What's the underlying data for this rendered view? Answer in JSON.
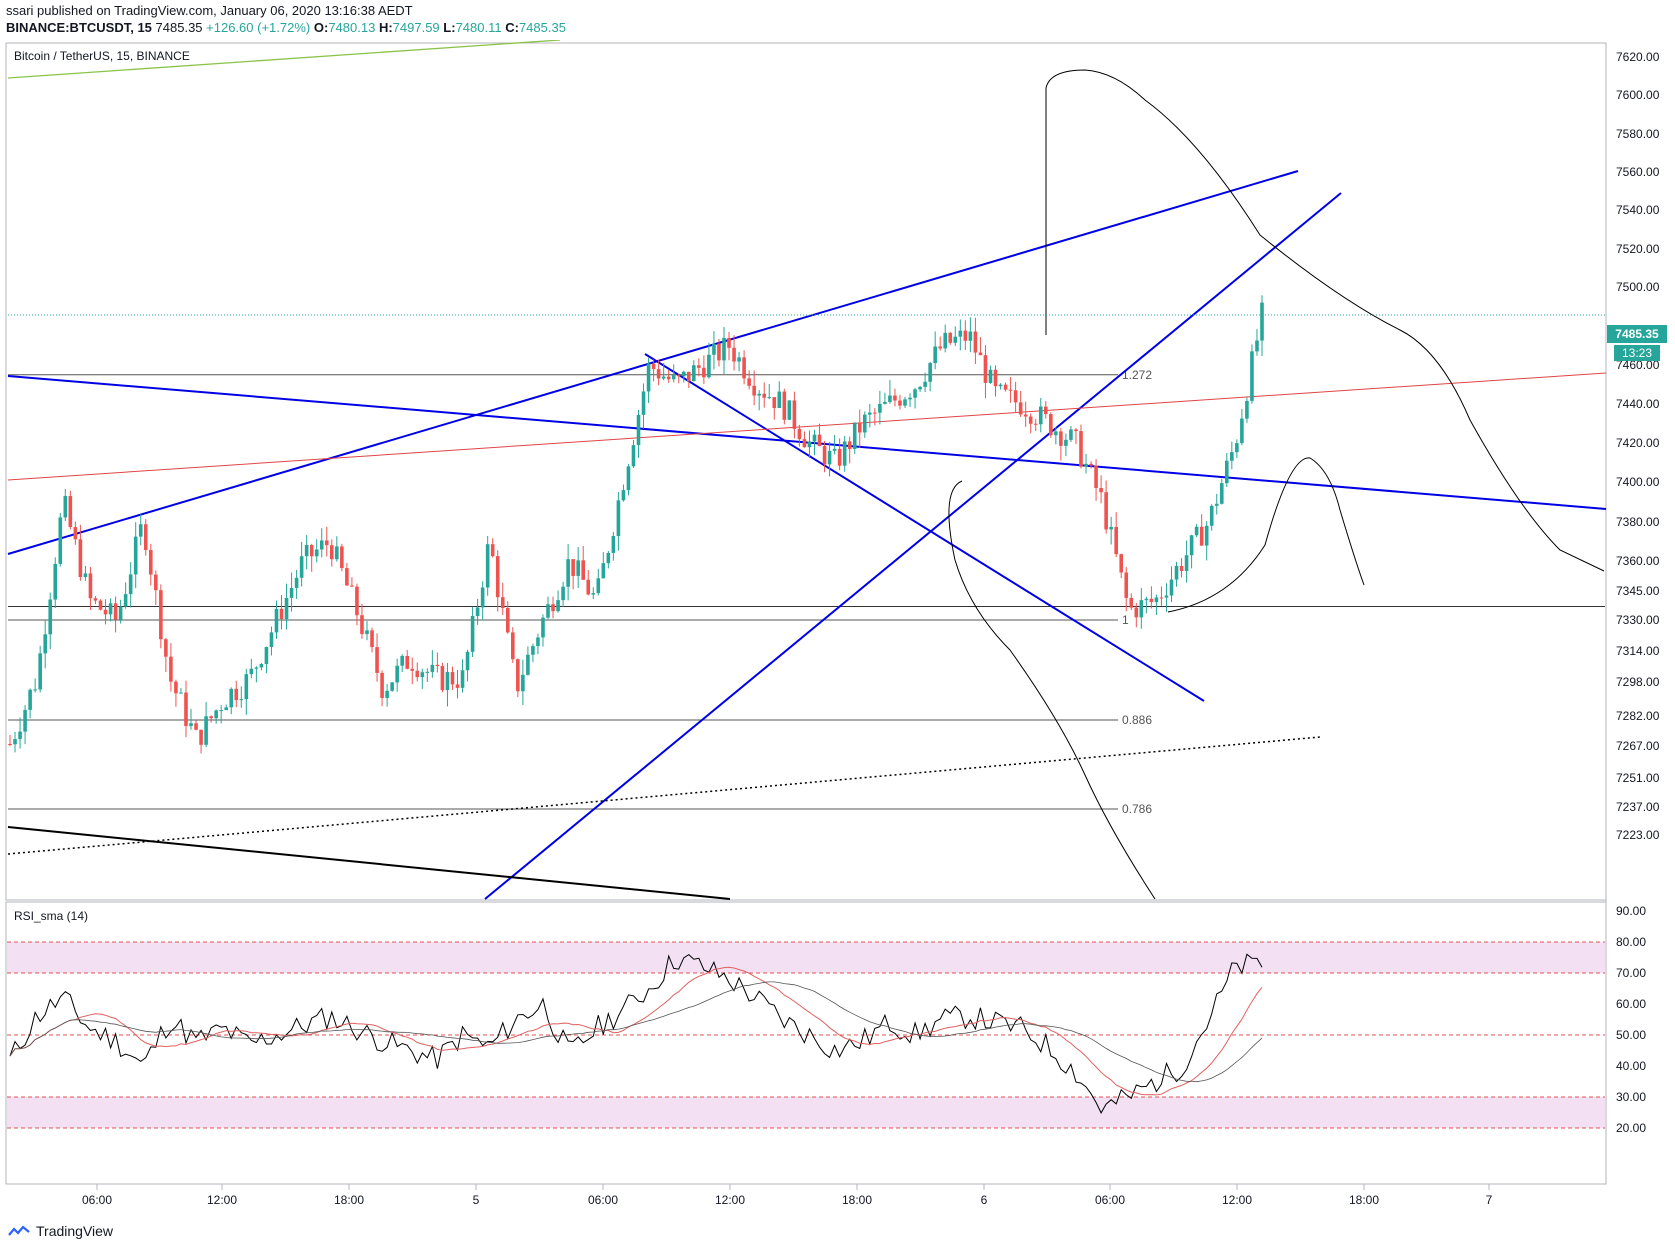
{
  "header": {
    "line1": "ssari published on TradingView.com, January 06, 2020 13:16:38 AEDT",
    "symbol": "BINANCE:BTCUSDT, 15",
    "last": "7485.35",
    "change": "+126.60 (+1.72%)",
    "o_label": "O:",
    "o": "7480.13",
    "h_label": "H:",
    "h": "7497.59",
    "l_label": "L:",
    "l": "7480.11",
    "c_label": "C:",
    "c": "7485.35"
  },
  "footer": {
    "brand": "TradingView"
  },
  "colors": {
    "up": "#26a69a",
    "down": "#ef5350",
    "trend": "#0000e6",
    "redline": "#e04545",
    "rsi": "#000000",
    "rsi_sma": "#e06060",
    "band": "#f3e0f3"
  },
  "chart_data": [
    {
      "type": "candlestick",
      "title": "Bitcoin / TetherUS, 15, BINANCE",
      "y_ticks": [
        7620.0,
        7600.0,
        7580.0,
        7560.0,
        7540.0,
        7520.0,
        7500.0,
        7460.0,
        7440.0,
        7420.0,
        7400.0,
        7380.0,
        7360.0,
        7345.0,
        7330.0,
        7314.0,
        7298.0,
        7282.0,
        7267.0,
        7251.0,
        7237.0,
        7223.0
      ],
      "x_ticks": [
        "06:00",
        "12:00",
        "18:00",
        "5",
        "06:00",
        "12:00",
        "18:00",
        "6",
        "06:00",
        "12:00",
        "18:00",
        "7"
      ],
      "last_price": "7485.35",
      "countdown": "13:23",
      "fib_levels": [
        {
          "label": "1.272",
          "price": 7455
        },
        {
          "label": "1",
          "price": 7330
        },
        {
          "label": "0.886",
          "price": 7280
        },
        {
          "label": "0.786",
          "price": 7236
        }
      ],
      "horizontal_levels": [
        7337
      ],
      "ohlc_anchor_prices": [
        7268,
        7300,
        7390,
        7340,
        7330,
        7380,
        7300,
        7270,
        7290,
        7300,
        7330,
        7360,
        7370,
        7335,
        7295,
        7310,
        7300,
        7300,
        7370,
        7295,
        7330,
        7360,
        7340,
        7400,
        7460,
        7450,
        7460,
        7470,
        7450,
        7440,
        7420,
        7410,
        7430,
        7440,
        7450,
        7470,
        7475,
        7445,
        7440,
        7430,
        7420,
        7390,
        7335,
        7340,
        7360,
        7380,
        7420,
        7485
      ]
    },
    {
      "type": "line",
      "title": "RSI_sma (14)",
      "y_ticks": [
        90.0,
        80.0,
        70.0,
        60.0,
        50.0,
        40.0,
        30.0,
        20.0
      ],
      "bands": [
        [
          70,
          80
        ],
        [
          20,
          30
        ]
      ],
      "x_ticks": [
        "06:00",
        "12:00",
        "18:00",
        "5",
        "06:00",
        "12:00",
        "18:00",
        "6",
        "06:00",
        "12:00",
        "18:00",
        "7"
      ],
      "rsi_anchors": [
        42,
        56,
        62,
        52,
        48,
        40,
        55,
        48,
        52,
        47,
        50,
        53,
        56,
        52,
        48,
        45,
        42,
        50,
        46,
        55,
        60,
        44,
        52,
        58,
        65,
        75,
        72,
        68,
        62,
        55,
        50,
        45,
        48,
        54,
        50,
        55,
        56,
        54,
        52,
        46,
        38,
        26,
        30,
        35,
        40,
        55,
        72,
        73
      ]
    }
  ]
}
